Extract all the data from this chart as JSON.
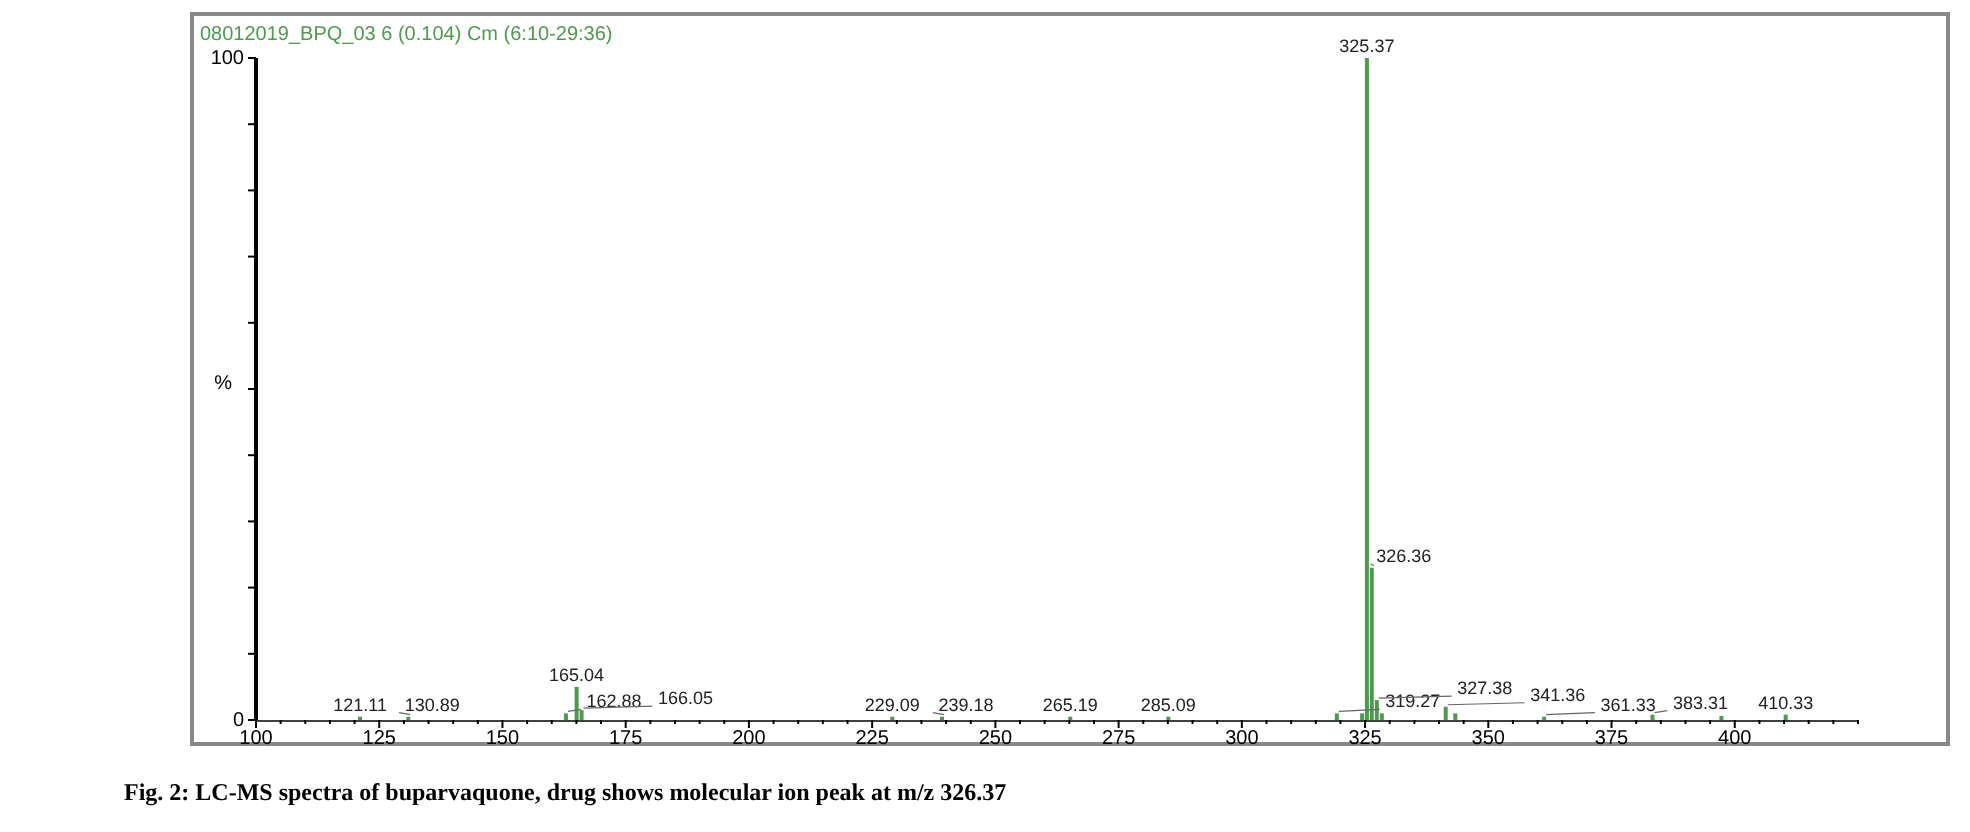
{
  "chart_data": {
    "type": "bar",
    "title": "08012019_BPQ_03 6 (0.104) Cm (6:10-29:36)",
    "ylabel": "%",
    "x": [
      121.11,
      130.89,
      162.88,
      165.04,
      166.05,
      229.09,
      239.18,
      265.19,
      285.09,
      319.27,
      324.4,
      325.37,
      326.36,
      327.38,
      328.4,
      341.36,
      343.3,
      361.33,
      383.31,
      397.3,
      410.33
    ],
    "values": [
      0.5,
      0.5,
      1,
      5,
      1.5,
      0.5,
      0.5,
      0.5,
      0.5,
      1,
      1,
      100,
      23,
      3,
      1,
      2,
      1,
      0.5,
      0.8,
      0.6,
      0.8
    ],
    "color": "#4e9a4e",
    "xlim": [
      100,
      425
    ],
    "xticks": [
      100,
      {
        "value": 105,
        "label": null
      },
      {
        "value": 110,
        "label": null
      },
      {
        "value": 115,
        "label": null
      },
      {
        "value": 120,
        "label": null
      },
      125,
      {
        "value": 130,
        "label": null
      },
      {
        "value": 135,
        "label": null
      },
      {
        "value": 140,
        "label": null
      },
      {
        "value": 145,
        "label": null
      },
      150,
      {
        "value": 155,
        "label": null
      },
      {
        "value": 160,
        "label": null
      },
      {
        "value": 165,
        "label": null
      },
      {
        "value": 170,
        "label": null
      },
      175,
      {
        "value": 180,
        "label": null
      },
      {
        "value": 185,
        "label": null
      },
      {
        "value": 190,
        "label": null
      },
      {
        "value": 195,
        "label": null
      },
      200,
      {
        "value": 205,
        "label": null
      },
      {
        "value": 210,
        "label": null
      },
      {
        "value": 215,
        "label": null
      },
      {
        "value": 220,
        "label": null
      },
      225,
      {
        "value": 230,
        "label": null
      },
      {
        "value": 235,
        "label": null
      },
      {
        "value": 240,
        "label": null
      },
      {
        "value": 245,
        "label": null
      },
      250,
      {
        "value": 255,
        "label": null
      },
      {
        "value": 260,
        "label": null
      },
      {
        "value": 265,
        "label": null
      },
      {
        "value": 270,
        "label": null
      },
      275,
      {
        "value": 280,
        "label": null
      },
      {
        "value": 285,
        "label": null
      },
      {
        "value": 290,
        "label": null
      },
      {
        "value": 295,
        "label": null
      },
      300,
      {
        "value": 305,
        "label": null
      },
      {
        "value": 310,
        "label": null
      },
      {
        "value": 315,
        "label": null
      },
      {
        "value": 320,
        "label": null
      },
      325,
      {
        "value": 330,
        "label": null
      },
      {
        "value": 335,
        "label": null
      },
      {
        "value": 340,
        "label": null
      },
      {
        "value": 345,
        "label": null
      },
      350,
      {
        "value": 355,
        "label": null
      },
      {
        "value": 360,
        "label": null
      },
      {
        "value": 365,
        "label": null
      },
      {
        "value": 370,
        "label": null
      },
      375,
      {
        "value": 380,
        "label": null
      },
      {
        "value": 385,
        "label": null
      },
      {
        "value": 390,
        "label": null
      },
      {
        "value": 395,
        "label": null
      },
      400,
      {
        "value": 405,
        "label": null
      },
      {
        "value": 410,
        "label": null
      },
      {
        "value": 415,
        "label": null
      },
      {
        "value": 420,
        "label": null
      },
      {
        "value": 425,
        "label": null
      }
    ],
    "ylim": [
      0,
      100
    ],
    "yticks": [
      0,
      {
        "value": 10,
        "label": null
      },
      {
        "value": 20,
        "label": null
      },
      {
        "value": 30,
        "label": null
      },
      {
        "value": 40,
        "label": null
      },
      {
        "value": 50,
        "label": null
      },
      {
        "value": 60,
        "label": null
      },
      {
        "value": 70,
        "label": null
      },
      {
        "value": 80,
        "label": null
      },
      {
        "value": 90,
        "label": null
      },
      100
    ],
    "grid": false,
    "legend": false,
    "annotations": [
      {
        "text": "121.11",
        "x": 121.11,
        "y": 0.5
      },
      {
        "text": "130.89",
        "x": 130.89,
        "y": 0.5
      },
      {
        "text": "162.88",
        "x": 162.88,
        "y": 1
      },
      {
        "text": "165.04",
        "x": 165.04,
        "y": 5
      },
      {
        "text": "166.05",
        "x": 166.05,
        "y": 1.5
      },
      {
        "text": "229.09",
        "x": 229.09,
        "y": 0.5
      },
      {
        "text": "239.18",
        "x": 239.18,
        "y": 0.5
      },
      {
        "text": "265.19",
        "x": 265.19,
        "y": 0.5
      },
      {
        "text": "285.09",
        "x": 285.09,
        "y": 0.5
      },
      {
        "text": "319.27",
        "x": 319.27,
        "y": 1
      },
      {
        "text": "325.37",
        "x": 325.37,
        "y": 100
      },
      {
        "text": "326.36",
        "x": 326.36,
        "y": 23
      },
      {
        "text": "327.38",
        "x": 327.38,
        "y": 3
      },
      {
        "text": "341.36",
        "x": 341.36,
        "y": 2
      },
      {
        "text": "361.33",
        "x": 361.33,
        "y": 0.5
      },
      {
        "text": "383.31",
        "x": 383.31,
        "y": 0.8
      },
      {
        "text": "410.33",
        "x": 410.33,
        "y": 0.8
      },
      "Fig. 2: LC-MS spectra of buparvaquone, drug shows molecular ion peak at m/z 326.37"
    ]
  }
}
